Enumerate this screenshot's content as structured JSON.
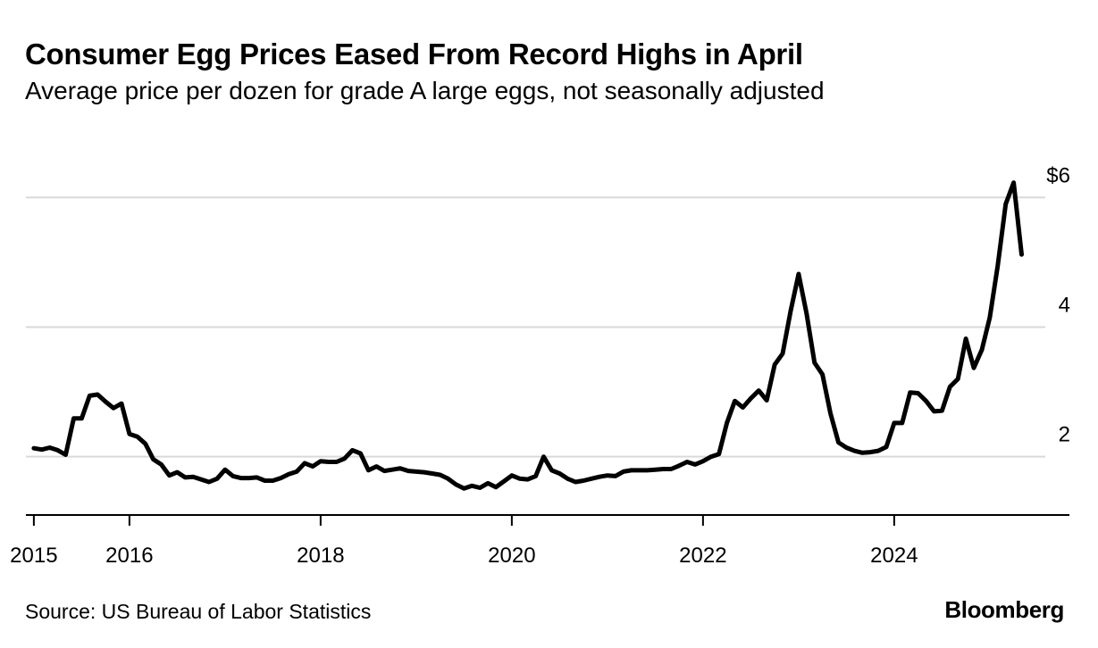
{
  "header": {
    "title": "Consumer Egg Prices Eased From Record Highs in April",
    "subtitle": "Average price per dozen for grade A large eggs, not seasonally adjusted"
  },
  "footer": {
    "source": "Source: US Bureau of Labor Statistics",
    "brand": "Bloomberg"
  },
  "colors": {
    "line": "#000000",
    "grid": "#d9d9d9",
    "axis": "#000000"
  },
  "chart_data": {
    "type": "line",
    "title": "Consumer Egg Prices Eased From Record Highs in April",
    "subtitle": "Average price per dozen for grade A large eggs, not seasonally adjusted",
    "xlabel": "",
    "ylabel": "",
    "xlim": [
      2014.917,
      2025.833
    ],
    "ylim": [
      1.1,
      6.5
    ],
    "x_ticks": [
      2015,
      2016,
      2018,
      2020,
      2022,
      2024
    ],
    "x_tick_labels": [
      "2015",
      "2016",
      "2018",
      "2020",
      "2022",
      "2024"
    ],
    "y_ticks": [
      2,
      4,
      6
    ],
    "y_tick_labels": [
      "2",
      "4",
      "$6"
    ],
    "grid": "horizontal",
    "series": [
      {
        "name": "Average price per dozen, grade A large eggs",
        "start_year": 2015,
        "start_month": 1,
        "frequency": "monthly",
        "values": [
          2.13,
          2.11,
          2.14,
          2.1,
          2.03,
          2.59,
          2.59,
          2.94,
          2.96,
          2.85,
          2.75,
          2.82,
          2.35,
          2.31,
          2.2,
          1.96,
          1.88,
          1.71,
          1.76,
          1.68,
          1.69,
          1.65,
          1.61,
          1.66,
          1.8,
          1.7,
          1.67,
          1.67,
          1.68,
          1.63,
          1.63,
          1.67,
          1.73,
          1.77,
          1.9,
          1.85,
          1.93,
          1.92,
          1.92,
          1.97,
          2.1,
          2.05,
          1.79,
          1.85,
          1.78,
          1.8,
          1.82,
          1.78,
          1.77,
          1.76,
          1.74,
          1.72,
          1.66,
          1.57,
          1.51,
          1.55,
          1.52,
          1.59,
          1.53,
          1.62,
          1.71,
          1.66,
          1.65,
          1.7,
          2.0,
          1.79,
          1.74,
          1.66,
          1.61,
          1.63,
          1.66,
          1.69,
          1.71,
          1.7,
          1.77,
          1.79,
          1.79,
          1.79,
          1.8,
          1.81,
          1.81,
          1.86,
          1.92,
          1.88,
          1.93,
          2.0,
          2.04,
          2.52,
          2.86,
          2.76,
          2.9,
          3.02,
          2.87,
          3.42,
          3.59,
          4.25,
          4.82,
          4.21,
          3.45,
          3.27,
          2.67,
          2.22,
          2.14,
          2.09,
          2.06,
          2.07,
          2.09,
          2.15,
          2.52,
          2.52,
          2.99,
          2.98,
          2.86,
          2.7,
          2.71,
          3.08,
          3.2,
          3.82,
          3.37,
          3.65,
          4.15,
          4.95,
          5.9,
          6.23,
          5.12
        ]
      }
    ]
  }
}
